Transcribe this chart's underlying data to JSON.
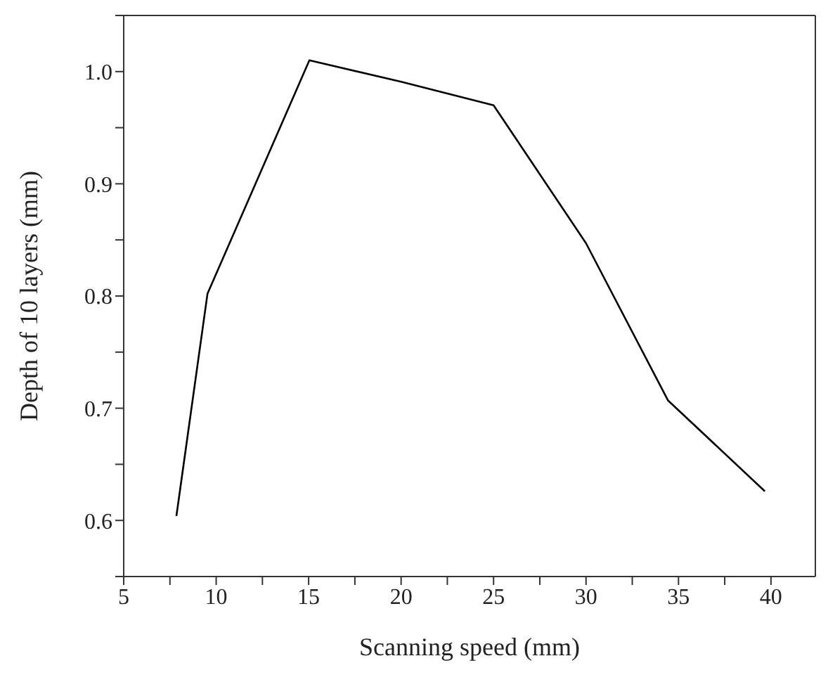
{
  "chart_data": {
    "type": "line",
    "xlabel": "Scanning speed (mm)",
    "ylabel": "Depth of 10 layers (mm)",
    "x": [
      7.85,
      9.53,
      15.04,
      20.0,
      25.0,
      30.0,
      34.43,
      39.67
    ],
    "series": [
      {
        "color": "#000000",
        "values": [
          0.604,
          0.802,
          1.01,
          0.991,
          0.97,
          0.847,
          0.707,
          0.626
        ]
      }
    ],
    "xlim": [
      5,
      42.4
    ],
    "xticks": [
      5,
      {
        "value": 7.5,
        "label": null
      },
      10,
      {
        "value": 12.5,
        "label": null
      },
      15,
      {
        "value": 17.5,
        "label": null
      },
      20,
      {
        "value": 22.5,
        "label": null
      },
      25,
      {
        "value": 27.5,
        "label": null
      },
      30,
      {
        "value": 32.5,
        "label": null
      },
      35,
      {
        "value": 37.5,
        "label": null
      },
      40
    ],
    "ylim": [
      0.55,
      1.05
    ],
    "yticks": [
      {
        "value": 0.55,
        "label": null
      },
      {
        "value": 0.6,
        "label": "0.6"
      },
      {
        "value": 0.65,
        "label": null
      },
      {
        "value": 0.7,
        "label": "0.7"
      },
      {
        "value": 0.75,
        "label": null
      },
      {
        "value": 0.8,
        "label": "0.8"
      },
      {
        "value": 0.85,
        "label": null
      },
      {
        "value": 0.9,
        "label": "0.9"
      },
      {
        "value": 0.95,
        "label": null
      },
      {
        "value": 1.0,
        "label": "1.0"
      },
      {
        "value": 1.05,
        "label": null
      }
    ],
    "grid": false,
    "marker": "none",
    "line_style": "solid"
  }
}
